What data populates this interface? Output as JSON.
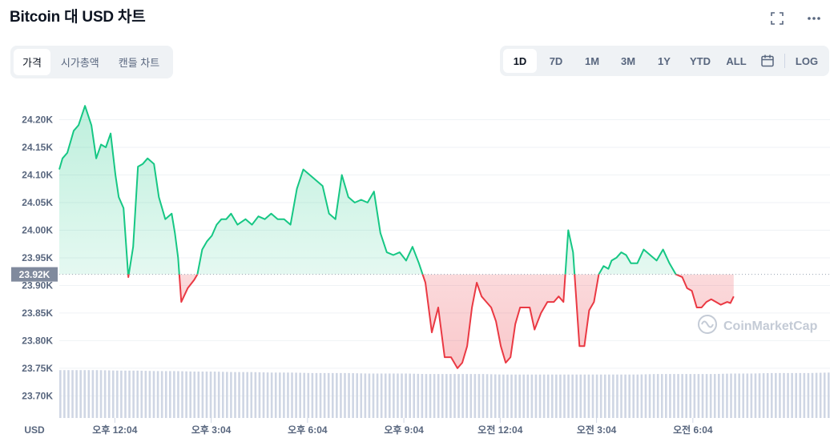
{
  "header": {
    "title": "Bitcoin 대 USD 차트"
  },
  "tabs": [
    {
      "label": "가격",
      "active": true
    },
    {
      "label": "시가총액",
      "active": false
    },
    {
      "label": "캔들 차트",
      "active": false
    }
  ],
  "ranges": [
    {
      "label": "1D",
      "active": true
    },
    {
      "label": "7D",
      "active": false
    },
    {
      "label": "1M",
      "active": false
    },
    {
      "label": "3M",
      "active": false
    },
    {
      "label": "1Y",
      "active": false
    },
    {
      "label": "YTD",
      "active": false
    },
    {
      "label": "ALL",
      "active": false
    }
  ],
  "log_label": "LOG",
  "icons": [
    "expand-icon",
    "more-icon",
    "calendar-icon"
  ],
  "colors": {
    "up": "#16c784",
    "down": "#ea3943",
    "price_tag": "#808a9d",
    "grid": "#eff2f5",
    "volume": "#cfd6e4"
  },
  "chart_data": {
    "type": "area",
    "baseline": 23920,
    "current_price_label": "23.92K",
    "y_tick_labels": [
      "24.20K",
      "24.15K",
      "24.10K",
      "24.05K",
      "24.00K",
      "23.95K",
      "23.90K",
      "23.85K",
      "23.80K",
      "23.75K",
      "23.70K"
    ],
    "y_ticks": [
      24200,
      24150,
      24100,
      24050,
      24000,
      23950,
      23900,
      23850,
      23800,
      23750,
      23700
    ],
    "ylim": [
      23660,
      24250
    ],
    "y_unit_label": "USD",
    "x_tick_labels": [
      "오후 12:04",
      "오후 3:04",
      "오후 6:04",
      "오후 9:04",
      "오전 12:04",
      "오전 3:04",
      "오전 6:04"
    ],
    "x_tick_positions": [
      1.73,
      4.73,
      7.73,
      10.73,
      13.73,
      16.73,
      19.73
    ],
    "xlim": [
      0,
      24
    ],
    "watermark": "CoinMarketCap",
    "series": [
      {
        "x": [
          0.0,
          0.1,
          0.25,
          0.45,
          0.6,
          0.8,
          1.0,
          1.15,
          1.3,
          1.45,
          1.6,
          1.75,
          1.85,
          2.0,
          2.15,
          2.3,
          2.45,
          2.6,
          2.75,
          2.95,
          3.1,
          3.3,
          3.5,
          3.6,
          3.7,
          3.8,
          4.0,
          4.2,
          4.3,
          4.45,
          4.6,
          4.75,
          4.9,
          5.05,
          5.2,
          5.35,
          5.55,
          5.8,
          6.0,
          6.2,
          6.4,
          6.6,
          6.8,
          7.0,
          7.2,
          7.4,
          7.6,
          7.8,
          8.0,
          8.2,
          8.4,
          8.6,
          8.8,
          9.0,
          9.2,
          9.4,
          9.6,
          9.8,
          10.0,
          10.2,
          10.4,
          10.6,
          10.8,
          11.0,
          11.2,
          11.4,
          11.6,
          11.8,
          12.0,
          12.2,
          12.4,
          12.55,
          12.7,
          12.85,
          13.0,
          13.15,
          13.3,
          13.45,
          13.6,
          13.75,
          13.9,
          14.05,
          14.2,
          14.35,
          14.5,
          14.65,
          14.8,
          15.0,
          15.2,
          15.4,
          15.55,
          15.7,
          15.85,
          16.0,
          16.2,
          16.35,
          16.5,
          16.65,
          16.8,
          16.95,
          17.1,
          17.2,
          17.35,
          17.5,
          17.65,
          17.8,
          18.0,
          18.2,
          18.4,
          18.6,
          18.8,
          19.0,
          19.2,
          19.4,
          19.55,
          19.7,
          19.85,
          20.0,
          20.15,
          20.3,
          20.45,
          20.6,
          20.8,
          20.9,
          21.0
        ],
        "values": [
          24110,
          24130,
          24140,
          24180,
          24190,
          24225,
          24190,
          24130,
          24155,
          24150,
          24175,
          24100,
          24060,
          24040,
          23915,
          23970,
          24115,
          24120,
          24130,
          24120,
          24060,
          24020,
          24030,
          23995,
          23950,
          23870,
          23895,
          23910,
          23920,
          23965,
          23980,
          23990,
          24010,
          24020,
          24020,
          24030,
          24010,
          24020,
          24010,
          24025,
          24020,
          24030,
          24020,
          24020,
          24010,
          24075,
          24110,
          24100,
          24090,
          24080,
          24030,
          24020,
          24100,
          24060,
          24050,
          24055,
          24050,
          24070,
          23995,
          23960,
          23955,
          23960,
          23945,
          23970,
          23940,
          23905,
          23815,
          23860,
          23770,
          23770,
          23750,
          23760,
          23790,
          23860,
          23905,
          23880,
          23870,
          23860,
          23835,
          23790,
          23760,
          23770,
          23830,
          23860,
          23860,
          23860,
          23820,
          23850,
          23870,
          23870,
          23880,
          23870,
          24000,
          23960,
          23790,
          23790,
          23855,
          23870,
          23920,
          23935,
          23930,
          23945,
          23950,
          23960,
          23955,
          23940,
          23940,
          23965,
          23955,
          23945,
          23965,
          23940,
          23920,
          23915,
          23895,
          23890,
          23860,
          23860,
          23870,
          23875,
          23870,
          23865,
          23870,
          23868,
          23880
        ]
      }
    ],
    "volume_relative": [
      0.98,
      0.98,
      0.98,
      0.97,
      0.97,
      0.96,
      0.96,
      0.95,
      0.95,
      0.94,
      0.94,
      0.93,
      0.93,
      0.92,
      0.92,
      0.92,
      0.91,
      0.91,
      0.91,
      0.9,
      0.9,
      0.9,
      0.9,
      0.89,
      0.89,
      0.89,
      0.89,
      0.89,
      0.89,
      0.89,
      0.89,
      0.9,
      0.9,
      0.9,
      0.9,
      0.91,
      0.91,
      0.92,
      0.92,
      0.92,
      0.93
    ]
  }
}
